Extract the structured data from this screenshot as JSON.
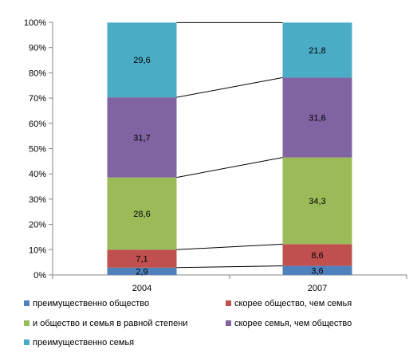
{
  "chart_data": {
    "type": "bar",
    "stacked": true,
    "percent": true,
    "categories": [
      "2004",
      "2007"
    ],
    "series": [
      {
        "name": "преимущественно общество",
        "color": "#4F81BD",
        "values": [
          2.9,
          3.6
        ],
        "labels": [
          "2,9",
          "3,6"
        ]
      },
      {
        "name": "скорее общество, чем семья",
        "color": "#C0504D",
        "values": [
          7.1,
          8.6
        ],
        "labels": [
          "7,1",
          "8,6"
        ]
      },
      {
        "name": "и общество и семья в равной степени",
        "color": "#9BBB59",
        "values": [
          28.6,
          34.3
        ],
        "labels": [
          "28,6",
          "34,3"
        ]
      },
      {
        "name": "скорее семья, чем общество",
        "color": "#8064A2",
        "values": [
          31.7,
          31.6
        ],
        "labels": [
          "31,7",
          "31,6"
        ]
      },
      {
        "name": "преимущественно семья",
        "color": "#4BACC6",
        "values": [
          29.6,
          21.8
        ],
        "labels": [
          "29,6",
          "21,8"
        ]
      }
    ],
    "ylim": [
      0,
      100
    ],
    "yticks": [
      "0%",
      "10%",
      "20%",
      "30%",
      "40%",
      "50%",
      "60%",
      "70%",
      "80%",
      "90%",
      "100%"
    ],
    "series_lines": true,
    "grid": false,
    "legend_position": "bottom",
    "title": "",
    "xlabel": "",
    "ylabel": ""
  }
}
